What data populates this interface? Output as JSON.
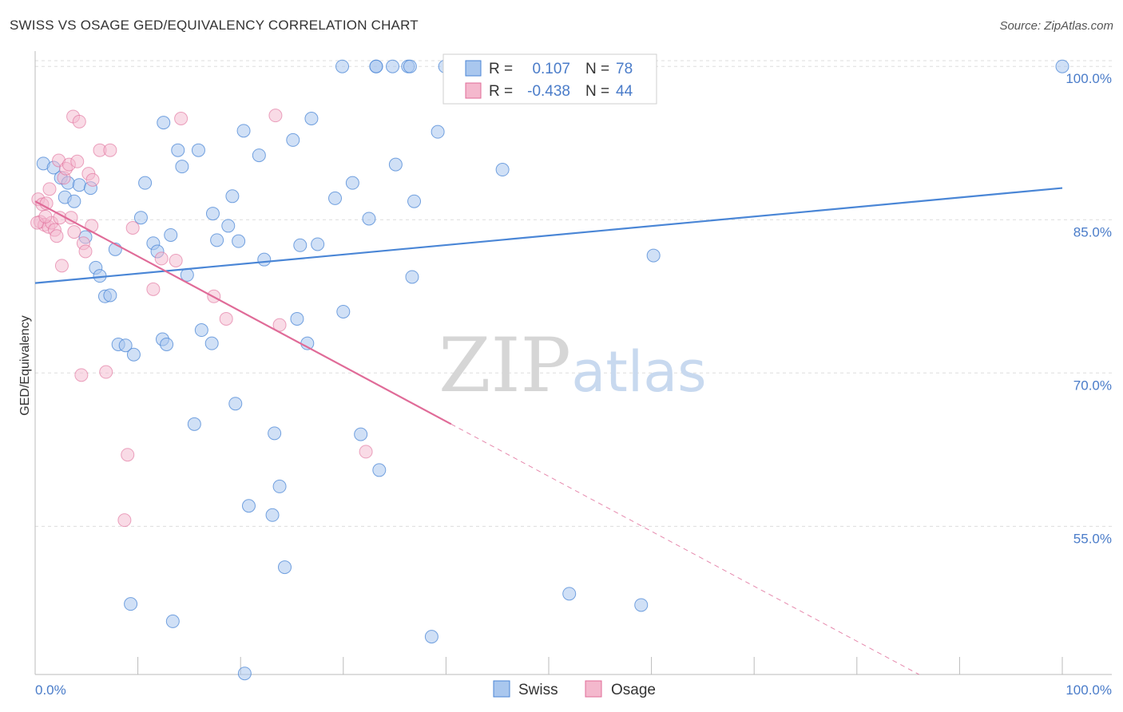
{
  "title": "SWISS VS OSAGE GED/EQUIVALENCY CORRELATION CHART",
  "source": "Source: ZipAtlas.com",
  "watermark": {
    "zip": "ZIP",
    "atlas": "atlas"
  },
  "colors": {
    "swiss": "#4a86d6",
    "swiss_fill": "#a9c7ee",
    "osage": "#e06b98",
    "osage_fill": "#f4b8cd",
    "axis_text": "#4a7cc9",
    "grid": "#dddddd"
  },
  "legend": {
    "rows": [
      {
        "r_label": "R =",
        "r_value": "0.107",
        "n_label": "N =",
        "n_value": "78"
      },
      {
        "r_label": "R =",
        "r_value": "-0.438",
        "n_label": "N =",
        "n_value": "44"
      }
    ]
  },
  "bottom_legend": [
    "Swiss",
    "Osage"
  ],
  "chart_data": {
    "type": "scatter",
    "title": "SWISS VS OSAGE GED/EQUIVALENCY CORRELATION CHART",
    "xlabel": "",
    "ylabel": "GED/Equivalency",
    "xlim": [
      0,
      100
    ],
    "ylim": [
      40.5,
      101.5
    ],
    "x_tick_labels": [
      "0.0%",
      "100.0%"
    ],
    "y_ticks": [
      55,
      70,
      85,
      100
    ],
    "y_tick_labels": [
      "55.0%",
      "70.0%",
      "85.0%",
      "100.0%"
    ],
    "grid": true,
    "legend_position": "top-center",
    "series": [
      {
        "name": "Swiss",
        "r": 0.107,
        "n": 78,
        "trend": {
          "x": [
            0,
            100
          ],
          "y": [
            78.8,
            88.1
          ]
        },
        "points": [
          [
            0.8,
            90.5
          ],
          [
            1.8,
            90.1
          ],
          [
            2.5,
            89.1
          ],
          [
            2.9,
            87.2
          ],
          [
            3.2,
            88.6
          ],
          [
            3.8,
            86.8
          ],
          [
            4.3,
            88.4
          ],
          [
            5.4,
            88.1
          ],
          [
            4.9,
            83.3
          ],
          [
            5.9,
            80.3
          ],
          [
            6.3,
            79.5
          ],
          [
            6.8,
            77.5
          ],
          [
            7.3,
            77.6
          ],
          [
            7.8,
            82.1
          ],
          [
            8.1,
            72.8
          ],
          [
            8.8,
            72.7
          ],
          [
            9.6,
            71.8
          ],
          [
            10.3,
            85.2
          ],
          [
            10.7,
            88.6
          ],
          [
            11.5,
            82.7
          ],
          [
            11.9,
            81.9
          ],
          [
            12.4,
            73.3
          ],
          [
            12.8,
            72.8
          ],
          [
            13.2,
            83.5
          ],
          [
            13.9,
            91.8
          ],
          [
            14.3,
            90.2
          ],
          [
            14.8,
            79.6
          ],
          [
            15.5,
            65.0
          ],
          [
            15.9,
            91.8
          ],
          [
            16.2,
            74.2
          ],
          [
            17.3,
            85.6
          ],
          [
            17.7,
            83.0
          ],
          [
            18.8,
            84.4
          ],
          [
            19.2,
            87.3
          ],
          [
            19.5,
            67.0
          ],
          [
            19.8,
            82.9
          ],
          [
            20.3,
            93.7
          ],
          [
            20.8,
            57.0
          ],
          [
            21.8,
            91.3
          ],
          [
            22.3,
            81.1
          ],
          [
            23.1,
            56.1
          ],
          [
            23.3,
            64.1
          ],
          [
            23.8,
            58.9
          ],
          [
            24.3,
            51.0
          ],
          [
            25.1,
            92.8
          ],
          [
            25.5,
            75.3
          ],
          [
            25.8,
            82.5
          ],
          [
            26.5,
            72.9
          ],
          [
            26.9,
            94.9
          ],
          [
            27.5,
            82.6
          ],
          [
            29.2,
            87.1
          ],
          [
            30.0,
            76.0
          ],
          [
            30.9,
            88.6
          ],
          [
            31.7,
            64.0
          ],
          [
            32.5,
            85.1
          ],
          [
            33.2,
            100.0
          ],
          [
            33.5,
            60.5
          ],
          [
            34.8,
            100.0
          ],
          [
            35.1,
            90.4
          ],
          [
            36.3,
            100.0
          ],
          [
            36.7,
            79.4
          ],
          [
            36.9,
            86.8
          ],
          [
            38.6,
            44.2
          ],
          [
            39.2,
            93.6
          ],
          [
            39.9,
            100.0
          ],
          [
            45.5,
            89.9
          ],
          [
            52.0,
            48.4
          ],
          [
            59.0,
            47.3
          ],
          [
            60.2,
            81.5
          ],
          [
            100.0,
            100.0
          ],
          [
            12.5,
            94.5
          ],
          [
            17.2,
            72.9
          ],
          [
            20.4,
            40.6
          ],
          [
            29.9,
            100.0
          ],
          [
            33.2,
            100.0
          ],
          [
            36.5,
            100.0
          ],
          [
            13.4,
            45.7
          ],
          [
            9.3,
            47.4
          ]
        ]
      },
      {
        "name": "Osage",
        "r": -0.438,
        "n": 44,
        "trend": {
          "x": [
            0,
            40.5
          ],
          "y": [
            86.8,
            65.0
          ]
        },
        "trend_dashed": {
          "x": [
            40.5,
            100
          ],
          "y": [
            65.0,
            33.0
          ]
        },
        "points": [
          [
            0.3,
            87.0
          ],
          [
            0.5,
            84.8
          ],
          [
            0.7,
            86.5
          ],
          [
            0.9,
            84.5
          ],
          [
            1.1,
            86.6
          ],
          [
            1.3,
            84.3
          ],
          [
            1.4,
            88.0
          ],
          [
            1.6,
            84.7
          ],
          [
            1.9,
            84.0
          ],
          [
            2.1,
            83.4
          ],
          [
            2.3,
            90.8
          ],
          [
            2.4,
            85.2
          ],
          [
            2.6,
            80.5
          ],
          [
            2.8,
            89.1
          ],
          [
            3.0,
            90.0
          ],
          [
            3.3,
            90.4
          ],
          [
            3.5,
            85.2
          ],
          [
            3.7,
            95.1
          ],
          [
            3.8,
            83.8
          ],
          [
            4.1,
            90.7
          ],
          [
            4.3,
            94.6
          ],
          [
            4.5,
            69.8
          ],
          [
            4.7,
            82.7
          ],
          [
            4.9,
            81.9
          ],
          [
            5.2,
            89.5
          ],
          [
            5.5,
            84.4
          ],
          [
            5.6,
            88.9
          ],
          [
            6.3,
            91.8
          ],
          [
            6.9,
            70.1
          ],
          [
            7.3,
            91.8
          ],
          [
            8.7,
            55.6
          ],
          [
            9.0,
            62.0
          ],
          [
            9.5,
            84.2
          ],
          [
            11.5,
            78.2
          ],
          [
            12.3,
            81.2
          ],
          [
            13.7,
            81.0
          ],
          [
            14.2,
            94.9
          ],
          [
            17.4,
            77.5
          ],
          [
            18.6,
            75.3
          ],
          [
            23.4,
            95.2
          ],
          [
            23.8,
            74.7
          ],
          [
            32.2,
            62.3
          ],
          [
            0.2,
            84.7
          ],
          [
            1.0,
            85.3
          ]
        ]
      }
    ]
  }
}
